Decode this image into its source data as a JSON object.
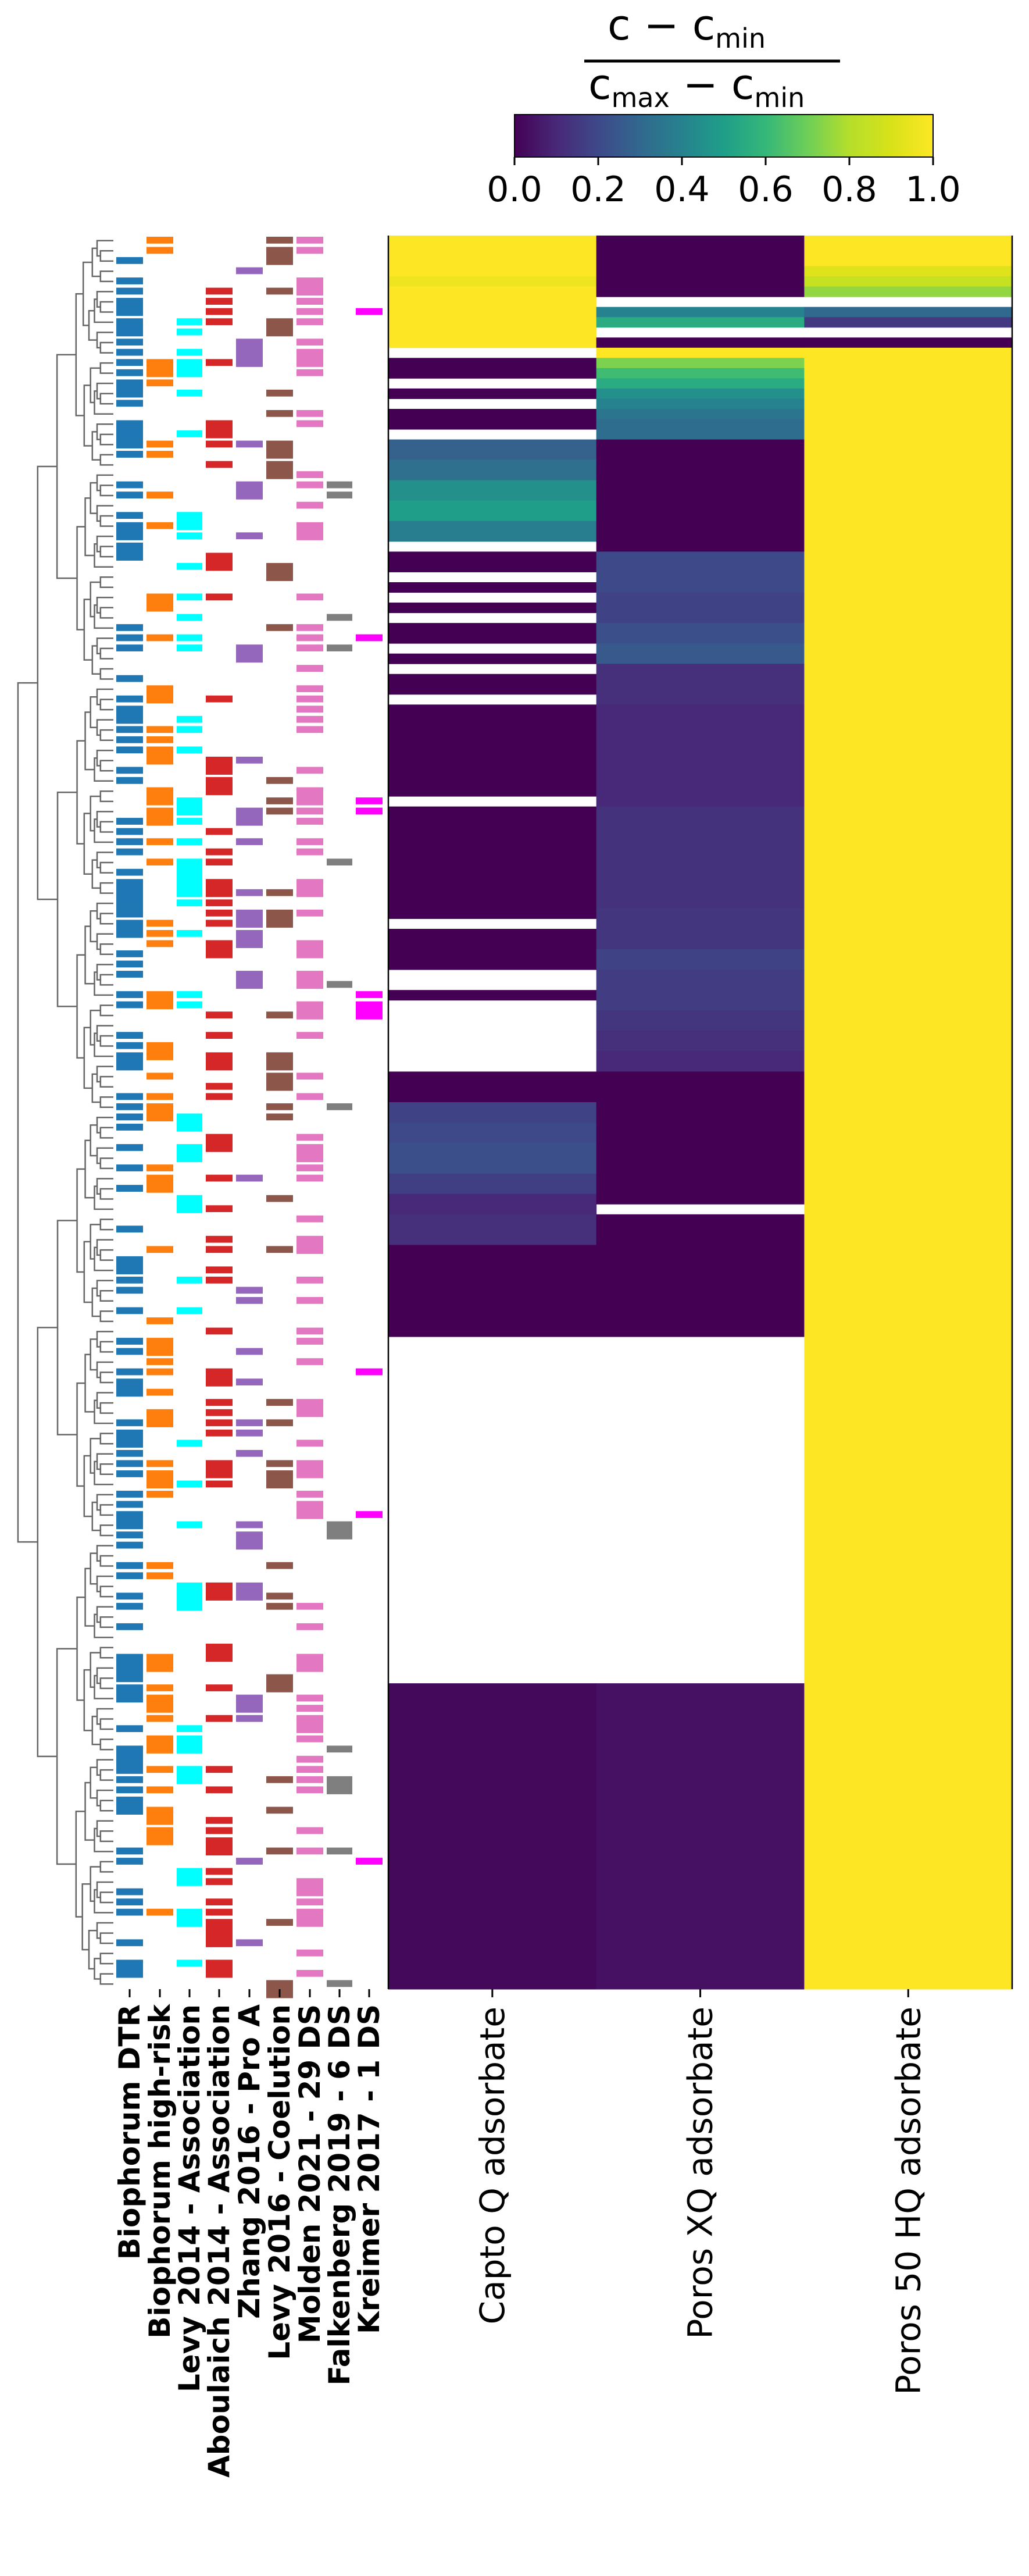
{
  "chart_data": {
    "type": "heatmap",
    "title": "",
    "colorbar": {
      "label_numerator": "c − c",
      "label_numerator_sub": "min",
      "label_denominator_a": "c",
      "label_denominator_a_sub": "max",
      "label_denominator_mid": " − c",
      "label_denominator_b_sub": "min",
      "ticks": [
        "0.0",
        "0.2",
        "0.4",
        "0.6",
        "0.8",
        "1.0"
      ],
      "range": [
        0,
        1
      ],
      "colormap": "viridis",
      "placement": "top-right"
    },
    "columns": [
      "Capto Q adsorbate",
      "Poros XQ adsorbate",
      "Poros 50 HQ adsorbate"
    ],
    "annotation_tracks": [
      {
        "name": "Biophorum DTR",
        "color": "#1f77b4"
      },
      {
        "name": "Biophorum high-risk",
        "color": "#ff7f0e"
      },
      {
        "name": "Levy 2014 - Association",
        "color": "#00ffff"
      },
      {
        "name": "Aboulaich 2014 - Association",
        "color": "#d62728"
      },
      {
        "name": "Zhang 2016 - Pro A",
        "color": "#9467bd"
      },
      {
        "name": "Levy 2016 - Coelution",
        "color": "#8c564b"
      },
      {
        "name": "Molden 2021 - 29 DS",
        "color": "#e377c2"
      },
      {
        "name": "Falkenberg 2019 - 6 DS",
        "color": "#7f7f7f"
      },
      {
        "name": "Kreimer 2017 - 1 DS",
        "color": "#ff00ff"
      }
    ],
    "n_rows": 172,
    "row_segments": {
      "Capto Q adsorbate": [
        [
          0,
          4,
          1.0
        ],
        [
          4,
          5,
          0.96
        ],
        [
          5,
          10,
          1.0
        ],
        [
          10,
          11,
          1.0
        ],
        [
          11,
          12,
          null
        ],
        [
          12,
          14,
          0.0
        ],
        [
          14,
          15,
          null
        ],
        [
          15,
          16,
          0.0
        ],
        [
          16,
          17,
          null
        ],
        [
          17,
          18,
          0.0
        ],
        [
          18,
          19,
          0.0
        ],
        [
          19,
          20,
          null
        ],
        [
          20,
          22,
          0.28
        ],
        [
          22,
          24,
          0.33
        ],
        [
          24,
          26,
          0.45
        ],
        [
          26,
          28,
          0.5
        ],
        [
          28,
          30,
          0.38
        ],
        [
          30,
          31,
          null
        ],
        [
          31,
          33,
          0.0
        ],
        [
          33,
          34,
          null
        ],
        [
          34,
          35,
          0.0
        ],
        [
          35,
          36,
          null
        ],
        [
          36,
          37,
          0.0
        ],
        [
          37,
          38,
          null
        ],
        [
          38,
          40,
          0.0
        ],
        [
          40,
          41,
          null
        ],
        [
          41,
          42,
          0.0
        ],
        [
          42,
          43,
          null
        ],
        [
          43,
          45,
          0.0
        ],
        [
          45,
          46,
          null
        ],
        [
          46,
          55,
          0.0
        ],
        [
          55,
          56,
          null
        ],
        [
          56,
          67,
          0.0
        ],
        [
          67,
          68,
          null
        ],
        [
          68,
          72,
          0.0
        ],
        [
          72,
          74,
          null
        ],
        [
          74,
          75,
          0.0
        ],
        [
          75,
          82,
          null
        ],
        [
          82,
          85,
          0.0
        ],
        [
          85,
          87,
          0.18
        ],
        [
          87,
          89,
          0.2
        ],
        [
          89,
          92,
          0.22
        ],
        [
          92,
          94,
          0.17
        ],
        [
          94,
          96,
          0.1
        ],
        [
          96,
          99,
          0.12
        ],
        [
          99,
          108,
          0.0
        ],
        [
          108,
          142,
          null
        ],
        [
          142,
          172,
          0.02
        ]
      ],
      "Poros XQ adsorbate": [
        [
          0,
          6,
          0.0
        ],
        [
          6,
          7,
          null
        ],
        [
          7,
          8,
          0.4
        ],
        [
          8,
          9,
          0.55
        ],
        [
          9,
          10,
          null
        ],
        [
          10,
          11,
          0.0
        ],
        [
          11,
          12,
          1.0
        ],
        [
          12,
          13,
          0.72
        ],
        [
          13,
          14,
          0.62
        ],
        [
          14,
          15,
          0.55
        ],
        [
          15,
          16,
          0.45
        ],
        [
          16,
          17,
          0.4
        ],
        [
          17,
          18,
          0.35
        ],
        [
          18,
          20,
          0.32
        ],
        [
          20,
          31,
          0.0
        ],
        [
          31,
          35,
          0.2
        ],
        [
          35,
          38,
          0.18
        ],
        [
          38,
          40,
          0.22
        ],
        [
          40,
          42,
          0.25
        ],
        [
          42,
          46,
          0.12
        ],
        [
          46,
          56,
          0.1
        ],
        [
          56,
          66,
          0.13
        ],
        [
          66,
          70,
          0.14
        ],
        [
          70,
          72,
          0.18
        ],
        [
          72,
          76,
          0.16
        ],
        [
          76,
          78,
          0.14
        ],
        [
          78,
          80,
          0.12
        ],
        [
          80,
          82,
          0.1
        ],
        [
          82,
          95,
          0.0
        ],
        [
          95,
          96,
          null
        ],
        [
          96,
          108,
          0.0
        ],
        [
          108,
          142,
          null
        ],
        [
          142,
          172,
          0.04
        ]
      ],
      "Poros 50 HQ adsorbate": [
        [
          0,
          3,
          1.0
        ],
        [
          3,
          4,
          0.92
        ],
        [
          4,
          5,
          0.85
        ],
        [
          5,
          6,
          0.75
        ],
        [
          6,
          7,
          null
        ],
        [
          7,
          8,
          0.3
        ],
        [
          8,
          9,
          0.15
        ],
        [
          9,
          10,
          null
        ],
        [
          10,
          11,
          0.0
        ],
        [
          11,
          172,
          1.0
        ]
      ]
    }
  },
  "accent_colors": {
    "low": "#440154",
    "high": "#fde725"
  }
}
